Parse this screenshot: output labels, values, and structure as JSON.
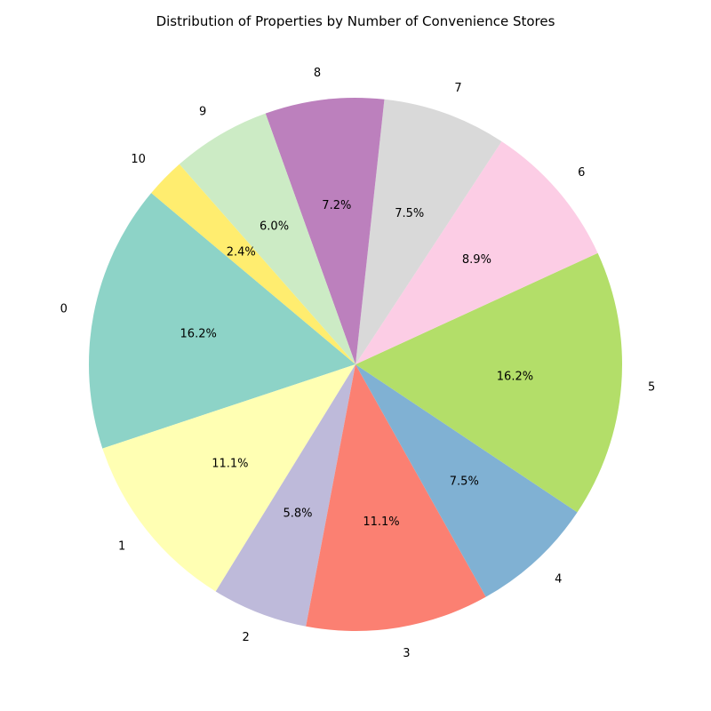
{
  "chart_data": {
    "type": "pie",
    "title": "Distribution of Properties by Number of Convenience Stores",
    "categories": [
      "0",
      "1",
      "2",
      "3",
      "4",
      "5",
      "6",
      "7",
      "8",
      "9",
      "10"
    ],
    "values": [
      16.2,
      11.1,
      5.8,
      11.1,
      7.5,
      16.2,
      8.9,
      7.5,
      7.2,
      6.0,
      2.4
    ],
    "percent_labels": [
      "16.2%",
      "11.1%",
      "5.8%",
      "11.1%",
      "7.5%",
      "16.2%",
      "8.9%",
      "7.5%",
      "7.2%",
      "6.0%",
      "2.4%"
    ],
    "colors": [
      "#8dd3c7",
      "#ffffb3",
      "#bebada",
      "#fb8072",
      "#80b1d3",
      "#b3de69",
      "#fccde5",
      "#d9d9d9",
      "#bc80bd",
      "#ccebc5",
      "#ffed6f"
    ],
    "start_angle_deg": 140,
    "direction": "counterclockwise",
    "legend": "none"
  }
}
